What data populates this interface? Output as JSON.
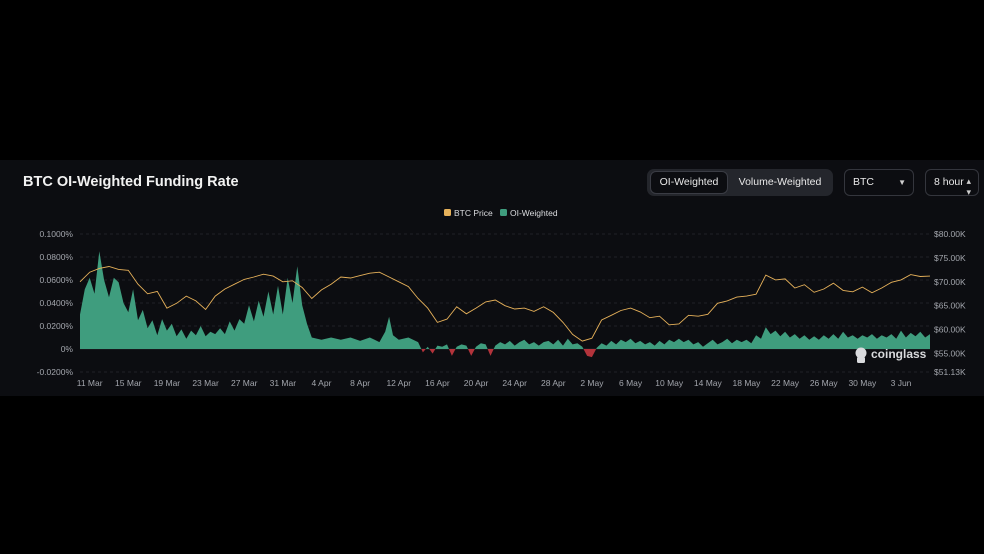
{
  "header": {
    "title": "BTC OI-Weighted Funding Rate",
    "tabs": [
      {
        "label": "OI-Weighted",
        "active": true
      },
      {
        "label": "Volume-Weighted",
        "active": false
      }
    ],
    "coin_select": "BTC",
    "interval_select": "8 hour"
  },
  "watermark": "coinglass",
  "colors": {
    "background": "#0c0d11",
    "price_line": "#e6b15a",
    "positive_area": "#3f9d7e",
    "negative_area": "#b3333b",
    "grid": "#26282e",
    "axis_text": "#a3a6ad"
  },
  "chart_data": {
    "type": "area",
    "x_start": "10 Mar",
    "x_end": "7 Jun",
    "x_tick_labels": [
      "11 Mar",
      "15 Mar",
      "19 Mar",
      "23 Mar",
      "27 Mar",
      "31 Mar",
      "4 Apr",
      "8 Apr",
      "12 Apr",
      "16 Apr",
      "20 Apr",
      "24 Apr",
      "28 Apr",
      "2 May",
      "6 May",
      "10 May",
      "14 May",
      "18 May",
      "22 May",
      "26 May",
      "30 May",
      "3 Jun"
    ],
    "y_left": {
      "ticks": [
        -0.0002,
        0,
        0.0002,
        0.0004,
        0.0006,
        0.0008,
        0.001
      ],
      "tick_labels": [
        "-0.0200%",
        "0%",
        "0.0200%",
        "0.0400%",
        "0.0600%",
        "0.0800%",
        "0.1000%"
      ],
      "range": [
        -0.0002,
        0.001
      ]
    },
    "y_right": {
      "ticks": [
        51130,
        55000,
        60000,
        65000,
        70000,
        75000,
        80000
      ],
      "tick_labels": [
        "$51.13K",
        "$55.00K",
        "$60.00K",
        "$65.00K",
        "$70.00K",
        "$75.00K",
        "$80.00K"
      ],
      "range": [
        51130,
        80000
      ]
    },
    "legend_position": "top-center",
    "series": [
      {
        "name": "BTC Price",
        "type": "line",
        "axis": "right",
        "points": [
          [
            0,
            70000
          ],
          [
            1,
            72000
          ],
          [
            2,
            72800
          ],
          [
            3,
            73200
          ],
          [
            4,
            72600
          ],
          [
            5,
            72400
          ],
          [
            6,
            69500
          ],
          [
            7,
            67500
          ],
          [
            8,
            68000
          ],
          [
            9,
            64500
          ],
          [
            10,
            65500
          ],
          [
            11,
            67000
          ],
          [
            12,
            66000
          ],
          [
            13,
            64200
          ],
          [
            14,
            67000
          ],
          [
            15,
            68500
          ],
          [
            16,
            69500
          ],
          [
            17,
            70500
          ],
          [
            18,
            71000
          ],
          [
            19,
            71600
          ],
          [
            20,
            71200
          ],
          [
            21,
            70000
          ],
          [
            22,
            70200
          ],
          [
            23,
            68800
          ],
          [
            24,
            66500
          ],
          [
            25,
            68300
          ],
          [
            26,
            69500
          ],
          [
            27,
            71000
          ],
          [
            28,
            70800
          ],
          [
            29,
            71300
          ],
          [
            30,
            71800
          ],
          [
            31,
            72000
          ],
          [
            32,
            71000
          ],
          [
            33,
            70000
          ],
          [
            34,
            69000
          ],
          [
            35,
            66500
          ],
          [
            36,
            64500
          ],
          [
            37,
            61500
          ],
          [
            38,
            62200
          ],
          [
            39,
            64800
          ],
          [
            40,
            63300
          ],
          [
            41,
            64500
          ],
          [
            42,
            65800
          ],
          [
            43,
            66200
          ],
          [
            44,
            65000
          ],
          [
            45,
            64300
          ],
          [
            46,
            64500
          ],
          [
            47,
            63800
          ],
          [
            48,
            64800
          ],
          [
            49,
            63600
          ],
          [
            50,
            61500
          ],
          [
            51,
            59000
          ],
          [
            52,
            57600
          ],
          [
            53,
            58200
          ],
          [
            54,
            62000
          ],
          [
            55,
            63000
          ],
          [
            56,
            64000
          ],
          [
            57,
            64500
          ],
          [
            58,
            63700
          ],
          [
            59,
            62500
          ],
          [
            60,
            62800
          ],
          [
            61,
            61000
          ],
          [
            62,
            61200
          ],
          [
            63,
            63000
          ],
          [
            64,
            62800
          ],
          [
            65,
            63200
          ],
          [
            66,
            65500
          ],
          [
            67,
            66000
          ],
          [
            68,
            66800
          ],
          [
            69,
            67000
          ],
          [
            70,
            67400
          ],
          [
            71,
            71400
          ],
          [
            72,
            70400
          ],
          [
            73,
            70600
          ],
          [
            74,
            68700
          ],
          [
            75,
            69400
          ],
          [
            76,
            67800
          ],
          [
            77,
            68500
          ],
          [
            78,
            69700
          ],
          [
            79,
            68200
          ],
          [
            80,
            67900
          ],
          [
            81,
            68900
          ],
          [
            82,
            67700
          ],
          [
            83,
            68700
          ],
          [
            84,
            69900
          ],
          [
            85,
            70400
          ],
          [
            86,
            71500
          ],
          [
            87,
            71100
          ],
          [
            88,
            71200
          ]
        ]
      },
      {
        "name": "OI-Weighted",
        "type": "area",
        "axis": "left",
        "points": [
          [
            0,
            0.0003
          ],
          [
            0.5,
            0.00052
          ],
          [
            1,
            0.00062
          ],
          [
            1.5,
            0.00048
          ],
          [
            2,
            0.00085
          ],
          [
            2.5,
            0.0006
          ],
          [
            3,
            0.00045
          ],
          [
            3.5,
            0.00062
          ],
          [
            4,
            0.00058
          ],
          [
            4.5,
            0.0004
          ],
          [
            5,
            0.00032
          ],
          [
            5.5,
            0.00052
          ],
          [
            6,
            0.00025
          ],
          [
            6.5,
            0.00034
          ],
          [
            7,
            0.00018
          ],
          [
            7.5,
            0.00025
          ],
          [
            8,
            0.00012
          ],
          [
            8.5,
            0.00026
          ],
          [
            9,
            0.00016
          ],
          [
            9.5,
            0.00022
          ],
          [
            10,
            0.00011
          ],
          [
            10.5,
            0.00017
          ],
          [
            11,
            9e-05
          ],
          [
            11.5,
            0.00016
          ],
          [
            12,
            0.00012
          ],
          [
            12.5,
            0.0002
          ],
          [
            13,
            0.00011
          ],
          [
            13.5,
            0.00015
          ],
          [
            14,
            0.00013
          ],
          [
            14.5,
            0.00018
          ],
          [
            15,
            0.00013
          ],
          [
            15.5,
            0.00024
          ],
          [
            16,
            0.00016
          ],
          [
            16.5,
            0.00026
          ],
          [
            17,
            0.00022
          ],
          [
            17.5,
            0.00038
          ],
          [
            18,
            0.00024
          ],
          [
            18.5,
            0.00042
          ],
          [
            19,
            0.00028
          ],
          [
            19.5,
            0.0005
          ],
          [
            20,
            0.0003
          ],
          [
            20.5,
            0.00055
          ],
          [
            21,
            0.0003
          ],
          [
            21.5,
            0.00062
          ],
          [
            22,
            0.0004
          ],
          [
            22.5,
            0.00072
          ],
          [
            23,
            0.00038
          ],
          [
            23.5,
            0.00022
          ],
          [
            24,
            0.0001
          ],
          [
            25,
            8e-05
          ],
          [
            26,
            0.0001
          ],
          [
            27,
            8e-05
          ],
          [
            28,
            0.0001
          ],
          [
            29,
            7e-05
          ],
          [
            30,
            0.0001
          ],
          [
            30.5,
            8e-05
          ],
          [
            31,
            6e-05
          ],
          [
            31.6,
            0.00015
          ],
          [
            32,
            0.00028
          ],
          [
            32.4,
            0.00012
          ],
          [
            33,
            8e-05
          ],
          [
            34,
            0.0001
          ],
          [
            35,
            6e-05
          ],
          [
            35.5,
            -3e-05
          ],
          [
            36,
            2e-05
          ],
          [
            36.5,
            -4e-05
          ],
          [
            37,
            3e-05
          ],
          [
            37.5,
            2e-05
          ],
          [
            38,
            4e-05
          ],
          [
            38.5,
            -6e-05
          ],
          [
            39,
            2e-05
          ],
          [
            39.5,
            4e-05
          ],
          [
            40,
            3e-05
          ],
          [
            40.5,
            -6e-05
          ],
          [
            41,
            2e-05
          ],
          [
            41.5,
            5e-05
          ],
          [
            42,
            4e-05
          ],
          [
            42.5,
            -6e-05
          ],
          [
            43,
            3e-05
          ],
          [
            43.5,
            6e-05
          ],
          [
            44,
            4e-05
          ],
          [
            44.5,
            7e-05
          ],
          [
            45,
            3e-05
          ],
          [
            45.5,
            6e-05
          ],
          [
            46,
            8e-05
          ],
          [
            46.5,
            4e-05
          ],
          [
            47,
            6e-05
          ],
          [
            47.5,
            3e-05
          ],
          [
            48,
            6e-05
          ],
          [
            48.5,
            7e-05
          ],
          [
            49,
            4e-05
          ],
          [
            49.5,
            8e-05
          ],
          [
            50,
            3e-05
          ],
          [
            50.5,
            9e-05
          ],
          [
            51,
            4e-05
          ],
          [
            51.5,
            5e-05
          ],
          [
            52,
            2e-05
          ],
          [
            52.5,
            -6e-05
          ],
          [
            53,
            -7e-05
          ],
          [
            53.5,
            1e-05
          ],
          [
            54,
            5e-05
          ],
          [
            54.5,
            3e-05
          ],
          [
            55,
            7e-05
          ],
          [
            55.5,
            4e-05
          ],
          [
            56,
            8e-05
          ],
          [
            56.5,
            6e-05
          ],
          [
            57,
            9e-05
          ],
          [
            57.5,
            5e-05
          ],
          [
            58,
            7e-05
          ],
          [
            58.5,
            4e-05
          ],
          [
            59,
            6e-05
          ],
          [
            59.5,
            3e-05
          ],
          [
            60,
            7e-05
          ],
          [
            60.5,
            4e-05
          ],
          [
            61,
            8e-05
          ],
          [
            61.5,
            6e-05
          ],
          [
            62,
            9e-05
          ],
          [
            62.5,
            6e-05
          ],
          [
            63,
            8e-05
          ],
          [
            63.5,
            4e-05
          ],
          [
            64,
            6e-05
          ],
          [
            64.5,
            2e-05
          ],
          [
            65,
            5e-05
          ],
          [
            65.5,
            8e-05
          ],
          [
            66,
            4e-05
          ],
          [
            66.5,
            6e-05
          ],
          [
            67,
            9e-05
          ],
          [
            67.5,
            5e-05
          ],
          [
            68,
            8e-05
          ],
          [
            68.5,
            6e-05
          ],
          [
            69,
            8e-05
          ],
          [
            69.5,
            5e-05
          ],
          [
            70,
            0.00012
          ],
          [
            70.5,
            9e-05
          ],
          [
            71,
            0.00019
          ],
          [
            71.5,
            0.00013
          ],
          [
            72,
            0.00016
          ],
          [
            72.5,
            0.00011
          ],
          [
            73,
            0.00015
          ],
          [
            73.5,
            0.0001
          ],
          [
            74,
            0.00013
          ],
          [
            74.5,
            9e-05
          ],
          [
            75,
            0.00012
          ],
          [
            75.5,
            8e-05
          ],
          [
            76,
            0.00011
          ],
          [
            76.5,
            8e-05
          ],
          [
            77,
            0.00012
          ],
          [
            77.5,
            9e-05
          ],
          [
            78,
            0.00013
          ],
          [
            78.5,
            9e-05
          ],
          [
            79,
            0.00015
          ],
          [
            79.5,
            0.0001
          ],
          [
            80,
            0.00012
          ],
          [
            80.5,
            9e-05
          ],
          [
            81,
            0.00012
          ],
          [
            81.5,
            0.0001
          ],
          [
            82,
            0.00013
          ],
          [
            82.5,
            9e-05
          ],
          [
            83,
            0.00012
          ],
          [
            83.5,
            0.0001
          ],
          [
            84,
            0.00013
          ],
          [
            84.5,
            9e-05
          ],
          [
            85,
            0.00016
          ],
          [
            85.5,
            0.0001
          ],
          [
            86,
            0.00014
          ],
          [
            86.5,
            0.00011
          ],
          [
            87,
            0.00015
          ],
          [
            87.5,
            0.0001
          ],
          [
            88,
            0.00013
          ]
        ]
      }
    ]
  }
}
